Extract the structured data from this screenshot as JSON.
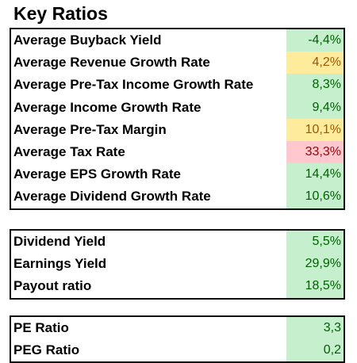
{
  "title": "Key Ratios",
  "tables": [
    {
      "rows": [
        {
          "label": "Average Buyback Yield",
          "value": "-4,4%",
          "status": "green"
        },
        {
          "label": "Average Revenue Growth Rate",
          "value": "4,2%",
          "status": "yellow"
        },
        {
          "label": "Average Pre-Tax Income Growth Rate",
          "value": "8,3%",
          "status": "green"
        },
        {
          "label": "Average Income Growth Rate",
          "value": "9,4%",
          "status": "green"
        },
        {
          "label": "Average Pre-Tax Margin",
          "value": "10,1%",
          "status": "yellow"
        },
        {
          "label": "Average Tax Rate",
          "value": "33,3%",
          "status": "red"
        },
        {
          "label": "Average EPS Growth Rate",
          "value": "14,4%",
          "status": "green"
        },
        {
          "label": "Average Dividend Growth Rate",
          "value": "10,6%",
          "status": "green"
        }
      ]
    },
    {
      "rows": [
        {
          "label": "Dividend Yield",
          "value": "5,5%",
          "status": "green"
        },
        {
          "label": "Earnings Yield",
          "value": "29,9%",
          "status": "green"
        },
        {
          "label": "Payout ratio",
          "value": "18,5%",
          "status": "green"
        }
      ]
    },
    {
      "rows": [
        {
          "label": "PE Ratio",
          "value": "3,3",
          "status": "green"
        },
        {
          "label": "PEG Ratio",
          "value": "0,2",
          "status": "green"
        }
      ]
    }
  ],
  "colors": {
    "green_fill": "#c6efce",
    "green_text": "#006100",
    "yellow_fill": "#ffeb9c",
    "yellow_text": "#9c5700",
    "red_fill": "#ffc7ce",
    "red_text": "#9c0006"
  }
}
